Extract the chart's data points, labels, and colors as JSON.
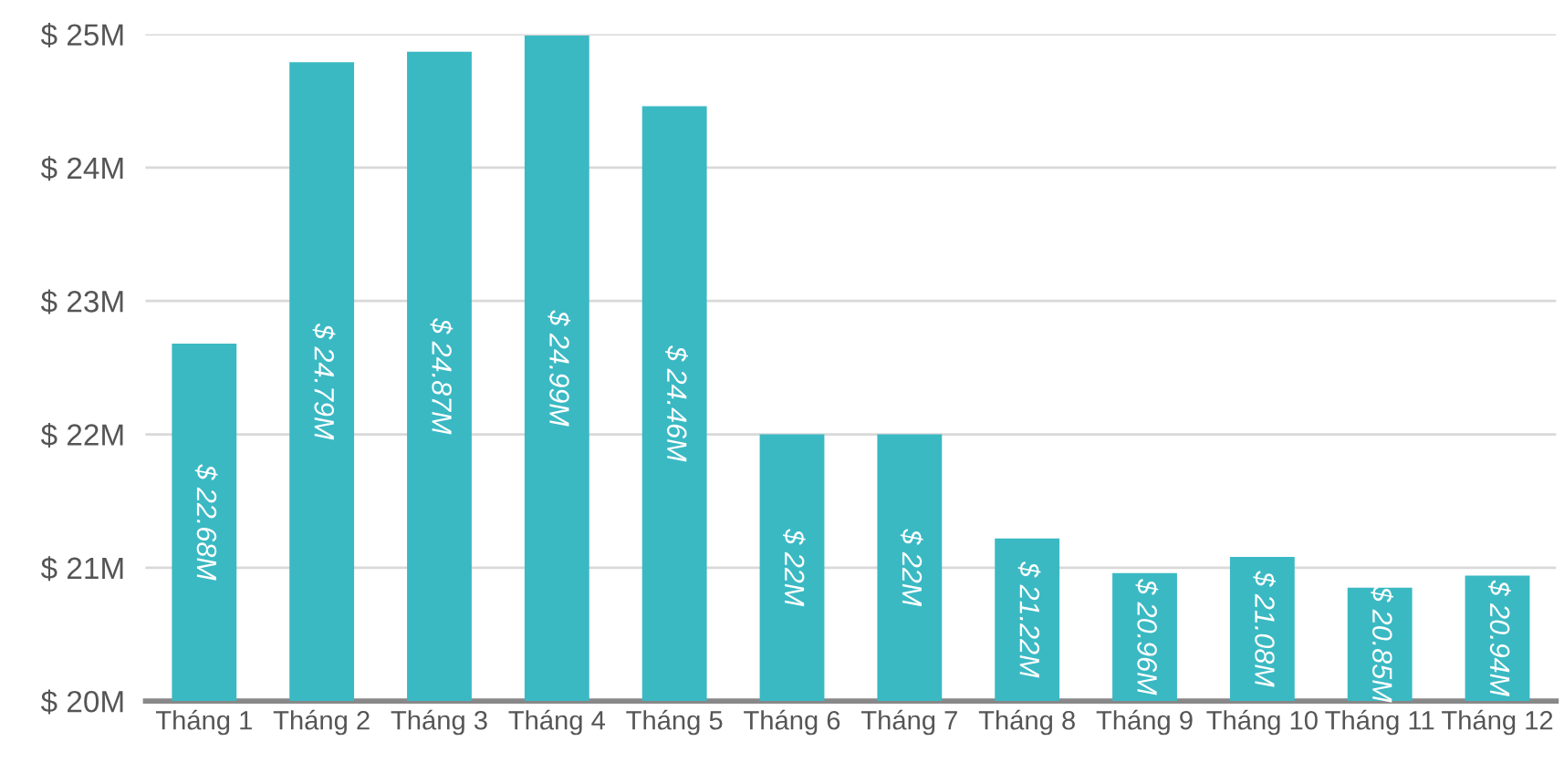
{
  "chart_data": {
    "type": "bar",
    "categories": [
      "Tháng 1",
      "Tháng 2",
      "Tháng 3",
      "Tháng 4",
      "Tháng 5",
      "Tháng 6",
      "Tháng 7",
      "Tháng 8",
      "Tháng 9",
      "Tháng 10",
      "Tháng 11",
      "Tháng 12"
    ],
    "values": [
      22.68,
      24.79,
      24.87,
      24.99,
      24.46,
      22,
      22,
      21.22,
      20.96,
      21.08,
      20.85,
      20.94
    ],
    "value_labels": [
      "$ 22.68M",
      "$ 24.79M",
      "$ 24.87M",
      "$ 24.99M",
      "$ 24.46M",
      "$ 22M",
      "$ 22M",
      "$ 21.22M",
      "$ 20.96M",
      "$ 21.08M",
      "$ 20.85M",
      "$ 20.94M"
    ],
    "color": "#3ab9c3",
    "ylim": [
      20,
      25
    ],
    "yticks": [
      {
        "value": 20,
        "label": "$ 20M"
      },
      {
        "value": 21,
        "label": "$ 21M"
      },
      {
        "value": 22,
        "label": "$ 22M"
      },
      {
        "value": 23,
        "label": "$ 23M"
      },
      {
        "value": 24,
        "label": "$ 24M"
      },
      {
        "value": 25,
        "label": "$ 25M"
      }
    ],
    "grid": "y",
    "legend": false
  }
}
